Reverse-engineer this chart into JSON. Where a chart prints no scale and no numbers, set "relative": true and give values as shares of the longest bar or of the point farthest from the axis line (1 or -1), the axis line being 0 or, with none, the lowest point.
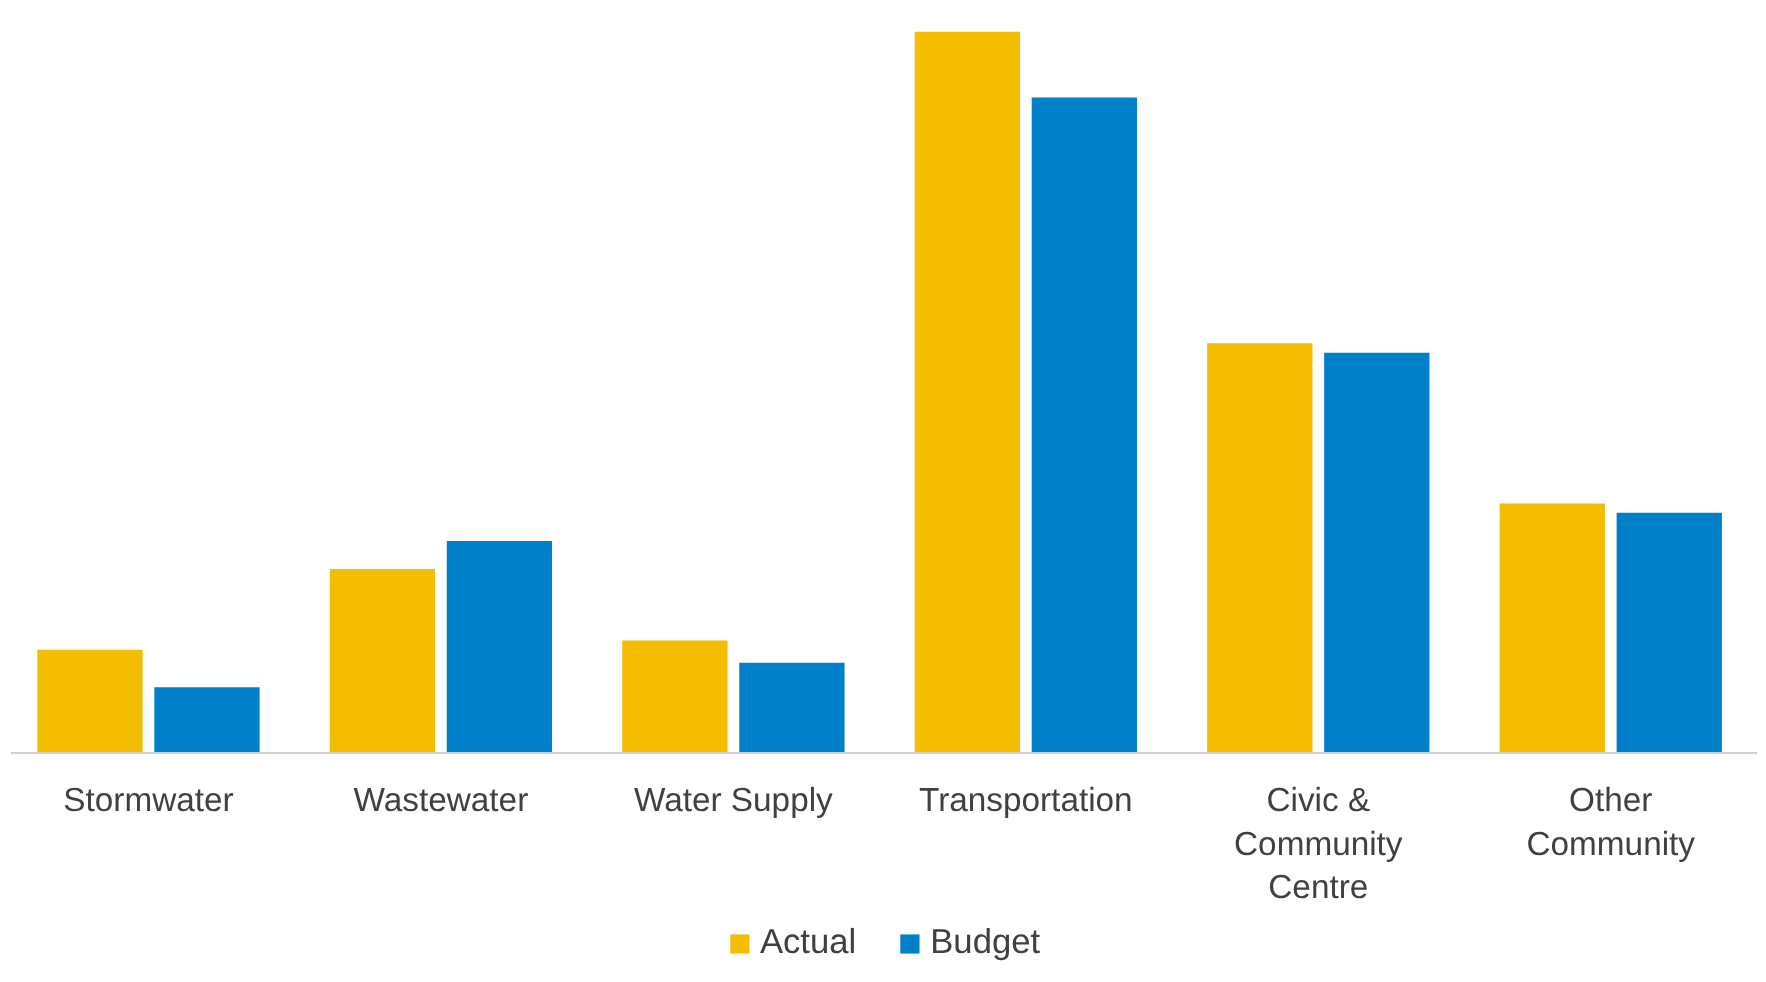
{
  "chart_data": {
    "type": "bar",
    "relative": true,
    "categories": [
      "Stormwater",
      "Wastewater",
      "Water Supply",
      "Transportation",
      "Civic &\nCommunity\nCentre",
      "Other\nCommunity"
    ],
    "series": [
      {
        "name": "Actual",
        "color": "#f5bd00",
        "values": [
          0.143,
          0.255,
          0.156,
          1,
          0.568,
          0.346
        ]
      },
      {
        "name": "Budget",
        "color": "#0080c8",
        "values": [
          0.091,
          0.294,
          0.125,
          0.909,
          0.555,
          0.333
        ]
      }
    ],
    "grid": false,
    "legend": "bottom"
  }
}
